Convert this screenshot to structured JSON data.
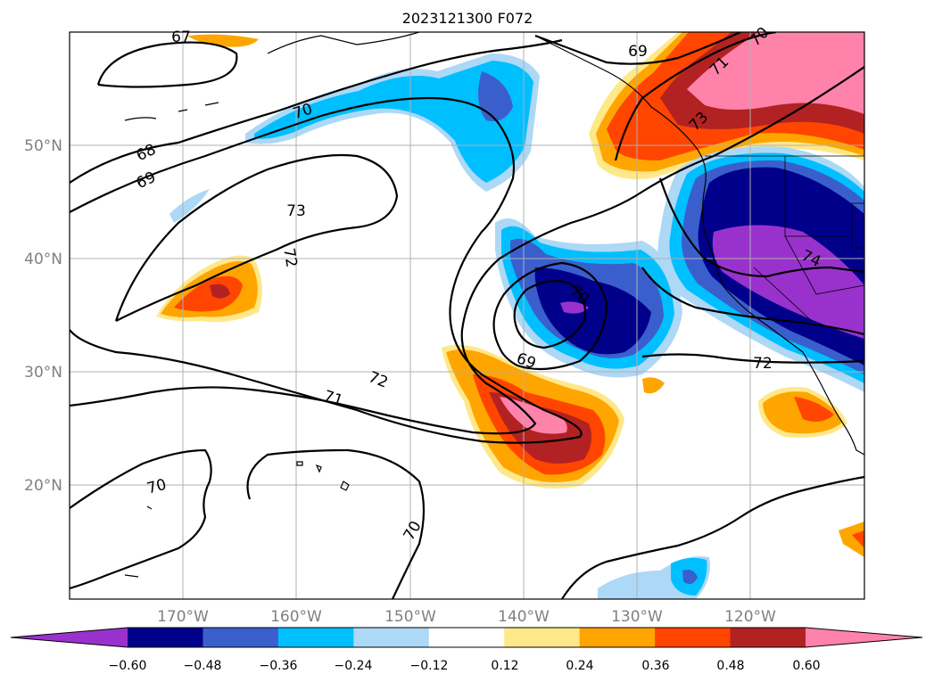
{
  "title": "2023121300 F072",
  "map": {
    "lon_labels": [
      "170°W",
      "160°W",
      "150°W",
      "140°W",
      "130°W",
      "120°W"
    ],
    "lat_labels": [
      "50°N",
      "40°N",
      "30°N",
      "20°N"
    ],
    "contour_labels": [
      "67",
      "68",
      "69",
      "70",
      "73",
      "70",
      "69",
      "72",
      "71",
      "72",
      "70",
      "70",
      "69",
      "70",
      "71",
      "73",
      "74",
      "72"
    ]
  },
  "colorbar": {
    "ticks": [
      "−0.60",
      "−0.48",
      "−0.36",
      "−0.24",
      "−0.12",
      "0.12",
      "0.24",
      "0.36",
      "0.48",
      "0.60"
    ],
    "colors": [
      "#9932CC",
      "#00008B",
      "#3A5FCD",
      "#00BFFF",
      "#ADD8F6",
      "#FFFFFF",
      "#FFE88A",
      "#FFA500",
      "#FF4500",
      "#B22222",
      "#FF82AB"
    ]
  }
}
